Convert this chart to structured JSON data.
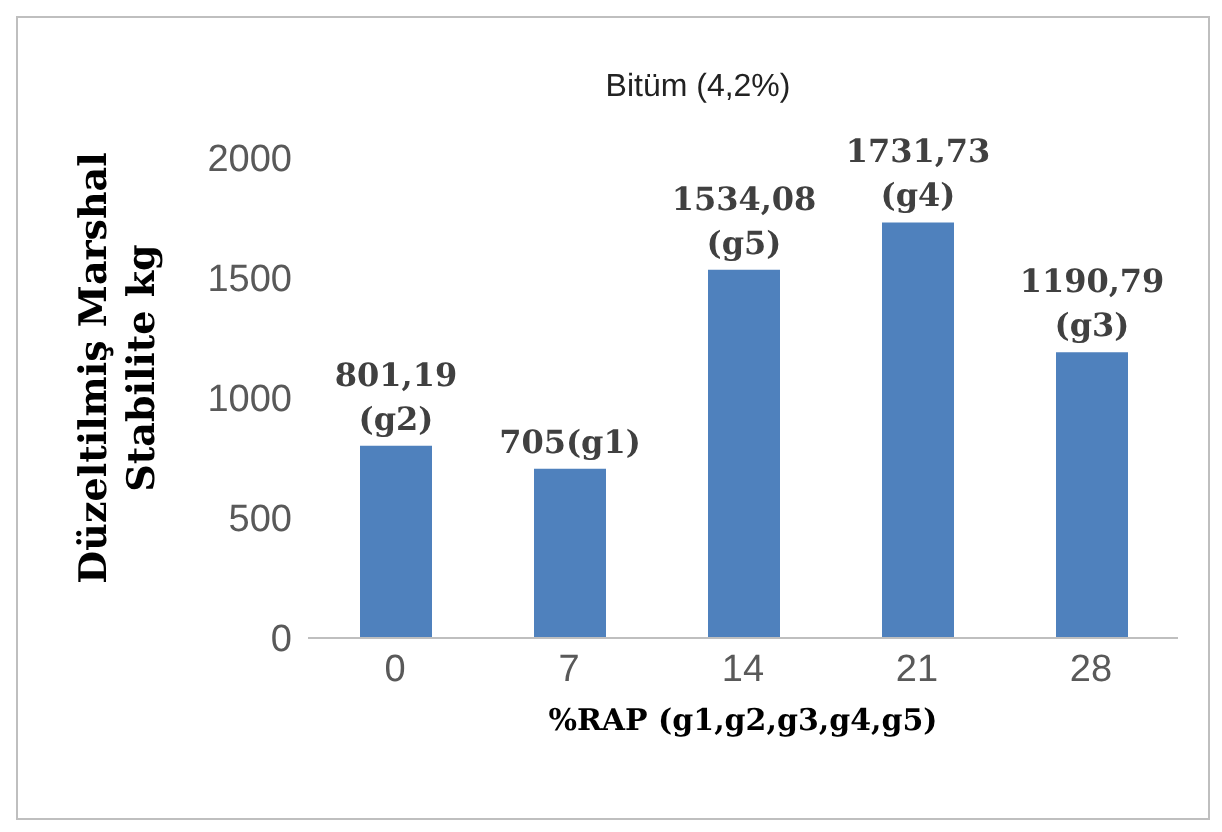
{
  "chart_data": {
    "type": "bar",
    "title": "Bitüm (4,2%)",
    "ylabel": "Düzeltilmiş Marshal Stabilite  kg",
    "xlabel": "%RAP (g1,g2,g3,g4,g5)",
    "categories": [
      "0",
      "7",
      "14",
      "21",
      "28"
    ],
    "values": [
      801.19,
      705,
      1534.08,
      1731.73,
      1190.79
    ],
    "value_labels": [
      "801,19 (g2)",
      "705(g1)",
      "1534,08 (g5)",
      "1731,73 (g4)",
      "1190,79 (g3)"
    ],
    "color": "#4f81bd",
    "ylim": [
      0,
      2000
    ],
    "yticks": [
      0,
      500,
      1000,
      1500,
      2000
    ],
    "grid": false,
    "legend": false
  }
}
